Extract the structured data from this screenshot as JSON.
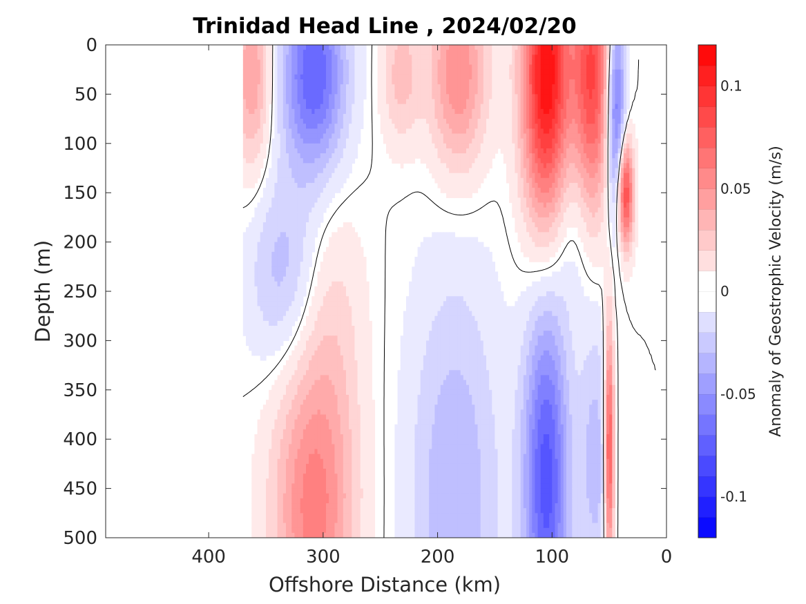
{
  "chart_data": {
    "type": "contour",
    "title": "Trinidad Head Line , 2024/02/20",
    "xlabel": "Offshore Distance (km)",
    "ylabel": "Depth (m)",
    "xlim": [
      490,
      0
    ],
    "ylim": [
      500,
      0
    ],
    "xticks": [
      400,
      300,
      200,
      100,
      0
    ],
    "yticks": [
      0,
      50,
      100,
      150,
      200,
      250,
      300,
      350,
      400,
      450,
      500
    ],
    "colorbar": {
      "label": "Anomaly of Geostrophic Velocity (m/s)",
      "range": [
        -0.12,
        0.12
      ],
      "step": 0.01,
      "ticks": [
        -0.1,
        -0.05,
        0,
        0.05,
        0.1
      ],
      "tick_labels": [
        "-0.1",
        "-0.05",
        "0",
        "0.05",
        "0.1"
      ],
      "positive_color": "#ff0000",
      "negative_color": "#0000ff"
    },
    "data_extent_km": [
      370,
      0
    ],
    "bottom_topography_color": "#000000",
    "features": [
      {
        "sign": "positive",
        "x": 362,
        "y": 30,
        "sx": 12,
        "sy": 70,
        "amp": 0.045
      },
      {
        "sign": "negative",
        "x": 308,
        "y": 30,
        "sx": 20,
        "sy": 70,
        "amp": 0.075
      },
      {
        "sign": "negative",
        "x": 335,
        "y": 230,
        "sx": 22,
        "sy": 70,
        "amp": 0.03
      },
      {
        "sign": "positive",
        "x": 182,
        "y": 30,
        "sx": 18,
        "sy": 70,
        "amp": 0.055
      },
      {
        "sign": "positive",
        "x": 232,
        "y": 30,
        "sx": 12,
        "sy": 50,
        "amp": 0.03
      },
      {
        "sign": "positive",
        "x": 105,
        "y": 30,
        "sx": 15,
        "sy": 110,
        "amp": 0.115
      },
      {
        "sign": "positive",
        "x": 65,
        "y": 30,
        "sx": 12,
        "sy": 100,
        "amp": 0.085
      },
      {
        "sign": "negative",
        "x": 44,
        "y": 70,
        "sx": 6,
        "sy": 80,
        "amp": 0.075
      },
      {
        "sign": "positive",
        "x": 36,
        "y": 150,
        "sx": 5,
        "sy": 40,
        "amp": 0.095
      },
      {
        "sign": "positive",
        "x": 308,
        "y": 470,
        "sx": 25,
        "sy": 110,
        "amp": 0.06
      },
      {
        "sign": "positive",
        "x": 292,
        "y": 270,
        "sx": 20,
        "sy": 90,
        "amp": 0.015
      },
      {
        "sign": "negative",
        "x": 185,
        "y": 460,
        "sx": 28,
        "sy": 160,
        "amp": 0.035
      },
      {
        "sign": "negative",
        "x": 105,
        "y": 440,
        "sx": 14,
        "sy": 130,
        "amp": 0.08
      },
      {
        "sign": "negative",
        "x": 82,
        "y": 180,
        "sx": 12,
        "sy": 70,
        "amp": 0.015
      },
      {
        "sign": "negative",
        "x": 62,
        "y": 420,
        "sx": 10,
        "sy": 100,
        "amp": 0.03
      },
      {
        "sign": "positive",
        "x": 50,
        "y": 410,
        "sx": 3,
        "sy": 90,
        "amp": 0.09
      }
    ]
  }
}
